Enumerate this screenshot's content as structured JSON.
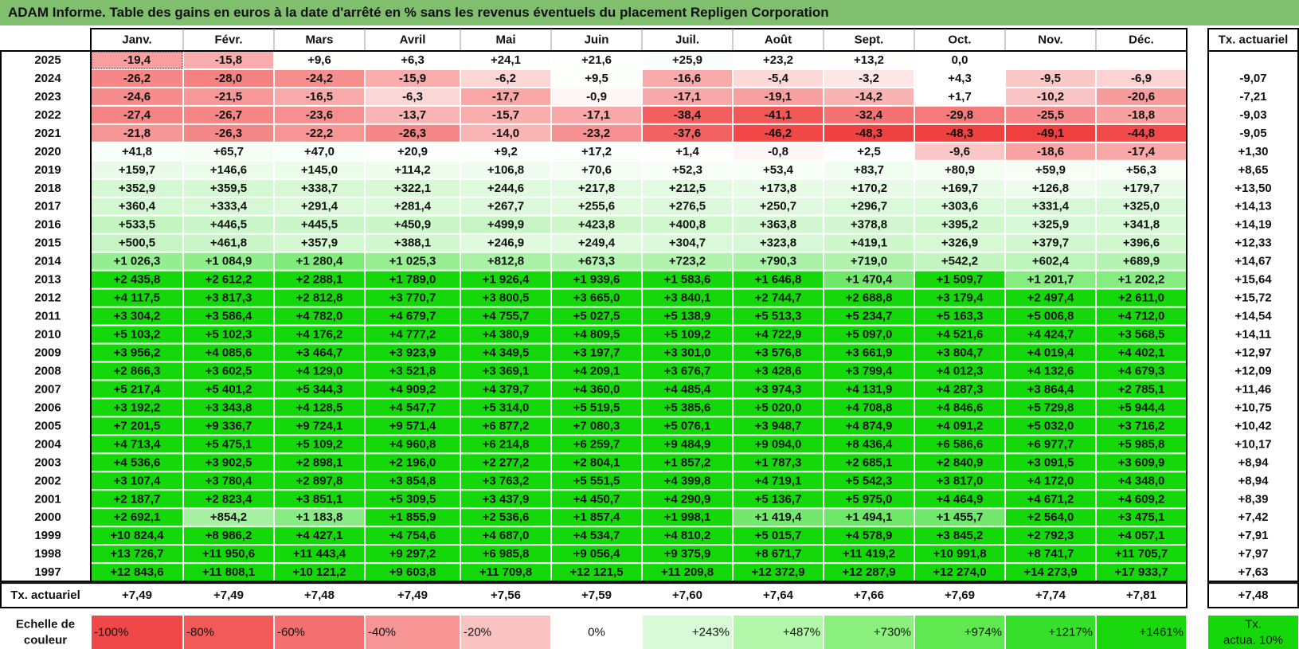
{
  "title": "ADAM Informe. Table des gains en euros à la date d'arrêté en % sans les revenus éventuels du placement Repligen Corporation",
  "months": [
    "Janv.",
    "Févr.",
    "Mars",
    "Avril",
    "Mai",
    "Juin",
    "Juil.",
    "Août",
    "Sept.",
    "Oct.",
    "Nov.",
    "Déc."
  ],
  "tx_header": "Tx. actuariel",
  "rows": [
    {
      "year": "2025",
      "values": [
        "-19,4",
        "-15,8",
        "+9,6",
        "+6,3",
        "+24,1",
        "+21,6",
        "+25,9",
        "+23,2",
        "+13,2",
        "0,0",
        "",
        ""
      ],
      "tx": ""
    },
    {
      "year": "2024",
      "values": [
        "-26,2",
        "-28,0",
        "-24,2",
        "-15,9",
        "-6,2",
        "+9,5",
        "-16,6",
        "-5,4",
        "-3,2",
        "+4,3",
        "-9,5",
        "-6,9"
      ],
      "tx": "-9,07"
    },
    {
      "year": "2023",
      "values": [
        "-24,6",
        "-21,5",
        "-16,5",
        "-6,3",
        "-17,7",
        "-0,9",
        "-17,1",
        "-19,1",
        "-14,2",
        "+1,7",
        "-10,2",
        "-20,6"
      ],
      "tx": "-7,21"
    },
    {
      "year": "2022",
      "values": [
        "-27,4",
        "-26,7",
        "-23,6",
        "-13,7",
        "-15,7",
        "-17,1",
        "-38,4",
        "-41,1",
        "-32,4",
        "-29,8",
        "-25,5",
        "-18,8"
      ],
      "tx": "-9,03"
    },
    {
      "year": "2021",
      "values": [
        "-21,8",
        "-26,3",
        "-22,2",
        "-26,3",
        "-14,0",
        "-23,2",
        "-37,6",
        "-46,2",
        "-48,3",
        "-48,3",
        "-49,1",
        "-44,8"
      ],
      "tx": "-9,05"
    },
    {
      "year": "2020",
      "values": [
        "+41,8",
        "+65,7",
        "+47,0",
        "+20,9",
        "+9,2",
        "+17,2",
        "+1,4",
        "-0,8",
        "+2,5",
        "-9,6",
        "-18,6",
        "-17,4"
      ],
      "tx": "+1,30"
    },
    {
      "year": "2019",
      "values": [
        "+159,7",
        "+146,6",
        "+145,0",
        "+114,2",
        "+106,8",
        "+70,6",
        "+52,3",
        "+53,4",
        "+83,7",
        "+80,9",
        "+59,9",
        "+56,3"
      ],
      "tx": "+8,65"
    },
    {
      "year": "2018",
      "values": [
        "+352,9",
        "+359,5",
        "+338,7",
        "+322,1",
        "+244,6",
        "+217,8",
        "+212,5",
        "+173,8",
        "+170,2",
        "+169,7",
        "+126,8",
        "+179,7"
      ],
      "tx": "+13,50"
    },
    {
      "year": "2017",
      "values": [
        "+360,4",
        "+333,4",
        "+291,4",
        "+281,4",
        "+267,7",
        "+255,6",
        "+276,5",
        "+250,7",
        "+296,7",
        "+303,6",
        "+331,4",
        "+325,0"
      ],
      "tx": "+14,13"
    },
    {
      "year": "2016",
      "values": [
        "+533,5",
        "+446,5",
        "+445,5",
        "+450,9",
        "+499,9",
        "+423,8",
        "+400,8",
        "+363,8",
        "+378,8",
        "+395,2",
        "+325,9",
        "+341,8"
      ],
      "tx": "+14,19"
    },
    {
      "year": "2015",
      "values": [
        "+500,5",
        "+461,8",
        "+357,9",
        "+388,1",
        "+246,9",
        "+249,4",
        "+304,7",
        "+323,8",
        "+419,1",
        "+326,9",
        "+379,7",
        "+396,6"
      ],
      "tx": "+12,33"
    },
    {
      "year": "2014",
      "values": [
        "+1 026,3",
        "+1 084,9",
        "+1 280,4",
        "+1 025,3",
        "+812,8",
        "+673,3",
        "+723,2",
        "+790,3",
        "+719,0",
        "+542,2",
        "+602,4",
        "+689,9"
      ],
      "tx": "+14,67"
    },
    {
      "year": "2013",
      "values": [
        "+2 435,8",
        "+2 612,2",
        "+2 288,1",
        "+1 789,0",
        "+1 926,4",
        "+1 939,6",
        "+1 583,6",
        "+1 646,8",
        "+1 470,4",
        "+1 509,7",
        "+1 201,7",
        "+1 202,2"
      ],
      "tx": "+15,64"
    },
    {
      "year": "2012",
      "values": [
        "+4 117,5",
        "+3 817,3",
        "+2 812,8",
        "+3 770,7",
        "+3 800,5",
        "+3 665,0",
        "+3 840,1",
        "+2 744,7",
        "+2 688,8",
        "+3 179,4",
        "+2 497,4",
        "+2 611,0"
      ],
      "tx": "+15,72"
    },
    {
      "year": "2011",
      "values": [
        "+3 304,2",
        "+3 586,4",
        "+4 782,0",
        "+4 679,7",
        "+4 755,7",
        "+5 027,5",
        "+5 138,9",
        "+5 513,3",
        "+5 234,7",
        "+5 163,3",
        "+5 006,8",
        "+4 712,0"
      ],
      "tx": "+14,54"
    },
    {
      "year": "2010",
      "values": [
        "+5 103,2",
        "+5 102,3",
        "+4 176,2",
        "+4 777,2",
        "+4 380,9",
        "+4 809,5",
        "+5 109,2",
        "+4 722,9",
        "+5 097,0",
        "+4 521,6",
        "+4 424,7",
        "+3 568,5"
      ],
      "tx": "+14,11"
    },
    {
      "year": "2009",
      "values": [
        "+3 956,2",
        "+4 085,6",
        "+3 464,7",
        "+3 923,9",
        "+4 349,5",
        "+3 197,7",
        "+3 301,0",
        "+3 576,8",
        "+3 661,9",
        "+3 804,7",
        "+4 019,4",
        "+4 402,1"
      ],
      "tx": "+12,97"
    },
    {
      "year": "2008",
      "values": [
        "+2 866,3",
        "+3 602,5",
        "+4 129,0",
        "+3 521,8",
        "+3 369,1",
        "+4 209,1",
        "+3 676,7",
        "+3 428,6",
        "+3 799,4",
        "+4 012,3",
        "+4 132,6",
        "+4 679,3"
      ],
      "tx": "+12,09"
    },
    {
      "year": "2007",
      "values": [
        "+5 217,4",
        "+5 401,2",
        "+5 344,3",
        "+4 909,2",
        "+4 379,7",
        "+4 360,0",
        "+4 485,4",
        "+3 974,3",
        "+4 131,9",
        "+4 287,3",
        "+3 864,4",
        "+2 785,1"
      ],
      "tx": "+11,46"
    },
    {
      "year": "2006",
      "values": [
        "+3 192,2",
        "+3 343,8",
        "+4 128,5",
        "+4 547,7",
        "+5 314,0",
        "+5 519,5",
        "+5 385,6",
        "+5 020,0",
        "+4 708,8",
        "+4 846,6",
        "+5 729,8",
        "+5 944,4"
      ],
      "tx": "+10,75"
    },
    {
      "year": "2005",
      "values": [
        "+7 201,5",
        "+9 336,7",
        "+9 724,1",
        "+9 571,4",
        "+6 877,2",
        "+7 080,3",
        "+5 076,1",
        "+3 948,7",
        "+4 874,9",
        "+4 091,2",
        "+5 032,0",
        "+3 716,2"
      ],
      "tx": "+10,42"
    },
    {
      "year": "2004",
      "values": [
        "+4 713,4",
        "+5 475,1",
        "+5 109,2",
        "+4 960,8",
        "+6 214,8",
        "+6 259,7",
        "+9 484,9",
        "+9 094,0",
        "+8 436,4",
        "+6 586,6",
        "+6 977,7",
        "+5 985,8"
      ],
      "tx": "+10,17"
    },
    {
      "year": "2003",
      "values": [
        "+4 536,6",
        "+3 902,5",
        "+2 898,1",
        "+2 196,0",
        "+2 277,2",
        "+2 804,1",
        "+1 857,2",
        "+1 787,3",
        "+2 685,1",
        "+2 840,9",
        "+3 091,5",
        "+3 609,9"
      ],
      "tx": "+8,94"
    },
    {
      "year": "2002",
      "values": [
        "+3 107,4",
        "+3 780,4",
        "+2 897,8",
        "+3 854,8",
        "+3 763,2",
        "+5 551,5",
        "+4 399,8",
        "+4 719,1",
        "+5 542,3",
        "+3 817,0",
        "+4 172,0",
        "+4 348,0"
      ],
      "tx": "+8,94"
    },
    {
      "year": "2001",
      "values": [
        "+2 187,7",
        "+2 823,4",
        "+3 851,1",
        "+5 309,5",
        "+3 437,9",
        "+4 450,7",
        "+4 290,9",
        "+5 136,7",
        "+5 975,0",
        "+4 464,9",
        "+4 671,2",
        "+4 609,2"
      ],
      "tx": "+8,39"
    },
    {
      "year": "2000",
      "values": [
        "+2 692,1",
        "+854,2",
        "+1 183,8",
        "+1 855,9",
        "+2 536,6",
        "+1 857,4",
        "+1 998,1",
        "+1 419,4",
        "+1 494,1",
        "+1 455,7",
        "+2 564,0",
        "+3 475,1"
      ],
      "tx": "+7,42"
    },
    {
      "year": "1999",
      "values": [
        "+10 824,4",
        "+8 986,2",
        "+4 427,1",
        "+4 754,6",
        "+4 687,0",
        "+4 534,7",
        "+4 810,2",
        "+5 015,7",
        "+4 578,9",
        "+3 845,2",
        "+2 792,3",
        "+4 057,1"
      ],
      "tx": "+7,91"
    },
    {
      "year": "1998",
      "values": [
        "+13 726,7",
        "+11 950,6",
        "+11 443,4",
        "+9 297,2",
        "+6 985,8",
        "+9 056,4",
        "+9 375,9",
        "+8 671,7",
        "+11 419,2",
        "+10 991,8",
        "+8 741,7",
        "+11 705,7"
      ],
      "tx": "+7,97"
    },
    {
      "year": "1997",
      "values": [
        "+12 843,6",
        "+11 808,1",
        "+10 121,2",
        "+9 603,8",
        "+11 709,8",
        "+12 121,5",
        "+11 209,8",
        "+12 372,9",
        "+12 287,9",
        "+12 274,0",
        "+14 273,9",
        "+17 933,7"
      ],
      "tx": "+7,63"
    }
  ],
  "footer": {
    "label": "Tx. actuariel",
    "values": [
      "+7,49",
      "+7,49",
      "+7,48",
      "+7,49",
      "+7,56",
      "+7,59",
      "+7,60",
      "+7,64",
      "+7,66",
      "+7,69",
      "+7,74",
      "+7,81"
    ],
    "tx": "+7,48"
  },
  "legend": {
    "label_line1": "Echelle de",
    "label_line2": "couleur",
    "items": [
      {
        "text": "-100%",
        "color": "#f04848"
      },
      {
        "text": "-80%",
        "color": "#f25a5a"
      },
      {
        "text": "-60%",
        "color": "#f47070"
      },
      {
        "text": "-40%",
        "color": "#f79494"
      },
      {
        "text": "-20%",
        "color": "#fbc2c2"
      },
      {
        "text": "0%",
        "color": "#ffffff"
      },
      {
        "text": "+243%",
        "color": "#d9fad6"
      },
      {
        "text": "+487%",
        "color": "#b3f7ab"
      },
      {
        "text": "+730%",
        "color": "#8cf07f"
      },
      {
        "text": "+974%",
        "color": "#5fe84f"
      },
      {
        "text": "+1217%",
        "color": "#36e02a"
      },
      {
        "text": "+1461%",
        "color": "#1ad80e"
      }
    ],
    "tx_line1": "Tx.",
    "tx_line2": "actua. 10%",
    "tx_color": "#14d80a"
  },
  "colors": {
    "title_bg": "#7fbf6e",
    "negative_max": "#f03c3c",
    "positive_max": "#14d80a"
  }
}
